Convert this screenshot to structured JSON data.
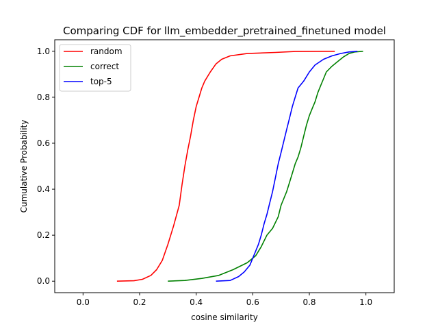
{
  "chart_data": {
    "type": "line",
    "title": "Comparing CDF for llm_embedder_pretrained_finetuned model",
    "xlabel": "cosine similarity",
    "ylabel": "Cumulative Probability",
    "xlim": [
      -0.1,
      1.1
    ],
    "ylim": [
      -0.05,
      1.05
    ],
    "xticks": [
      0.0,
      0.2,
      0.4,
      0.6,
      0.8,
      1.0
    ],
    "xtick_labels": [
      "0.0",
      "0.2",
      "0.4",
      "0.6",
      "0.8",
      "1.0"
    ],
    "yticks": [
      0.0,
      0.2,
      0.4,
      0.6,
      0.8,
      1.0
    ],
    "ytick_labels": [
      "0.0",
      "0.2",
      "0.4",
      "0.6",
      "0.8",
      "1.0"
    ],
    "grid": false,
    "legend_position": "top-left",
    "series": [
      {
        "name": "random",
        "color": "#ff0000",
        "points": [
          [
            0.12,
            0.0
          ],
          [
            0.18,
            0.002
          ],
          [
            0.21,
            0.008
          ],
          [
            0.24,
            0.025
          ],
          [
            0.26,
            0.05
          ],
          [
            0.28,
            0.09
          ],
          [
            0.3,
            0.16
          ],
          [
            0.32,
            0.24
          ],
          [
            0.34,
            0.33
          ],
          [
            0.35,
            0.42
          ],
          [
            0.36,
            0.5
          ],
          [
            0.37,
            0.57
          ],
          [
            0.38,
            0.63
          ],
          [
            0.39,
            0.7
          ],
          [
            0.4,
            0.76
          ],
          [
            0.41,
            0.8
          ],
          [
            0.42,
            0.84
          ],
          [
            0.43,
            0.87
          ],
          [
            0.45,
            0.91
          ],
          [
            0.47,
            0.945
          ],
          [
            0.49,
            0.965
          ],
          [
            0.52,
            0.98
          ],
          [
            0.58,
            0.99
          ],
          [
            0.68,
            0.995
          ],
          [
            0.75,
            0.999
          ],
          [
            0.89,
            1.0
          ]
        ]
      },
      {
        "name": "correct",
        "color": "#008000",
        "points": [
          [
            0.3,
            0.0
          ],
          [
            0.36,
            0.003
          ],
          [
            0.42,
            0.012
          ],
          [
            0.48,
            0.025
          ],
          [
            0.53,
            0.05
          ],
          [
            0.58,
            0.08
          ],
          [
            0.61,
            0.11
          ],
          [
            0.63,
            0.15
          ],
          [
            0.65,
            0.2
          ],
          [
            0.67,
            0.23
          ],
          [
            0.69,
            0.28
          ],
          [
            0.7,
            0.33
          ],
          [
            0.72,
            0.39
          ],
          [
            0.73,
            0.43
          ],
          [
            0.74,
            0.47
          ],
          [
            0.75,
            0.51
          ],
          [
            0.76,
            0.54
          ],
          [
            0.77,
            0.58
          ],
          [
            0.78,
            0.63
          ],
          [
            0.79,
            0.68
          ],
          [
            0.8,
            0.72
          ],
          [
            0.81,
            0.75
          ],
          [
            0.82,
            0.78
          ],
          [
            0.83,
            0.82
          ],
          [
            0.84,
            0.85
          ],
          [
            0.85,
            0.88
          ],
          [
            0.86,
            0.91
          ],
          [
            0.88,
            0.935
          ],
          [
            0.9,
            0.955
          ],
          [
            0.92,
            0.975
          ],
          [
            0.94,
            0.99
          ],
          [
            0.96,
            0.997
          ],
          [
            0.99,
            1.0
          ]
        ]
      },
      {
        "name": "top-5",
        "color": "#0000ff",
        "points": [
          [
            0.47,
            0.0
          ],
          [
            0.52,
            0.003
          ],
          [
            0.55,
            0.02
          ],
          [
            0.57,
            0.04
          ],
          [
            0.59,
            0.07
          ],
          [
            0.6,
            0.1
          ],
          [
            0.61,
            0.13
          ],
          [
            0.62,
            0.16
          ],
          [
            0.63,
            0.2
          ],
          [
            0.64,
            0.25
          ],
          [
            0.65,
            0.29
          ],
          [
            0.66,
            0.34
          ],
          [
            0.67,
            0.39
          ],
          [
            0.68,
            0.45
          ],
          [
            0.69,
            0.51
          ],
          [
            0.7,
            0.56
          ],
          [
            0.71,
            0.61
          ],
          [
            0.72,
            0.66
          ],
          [
            0.73,
            0.71
          ],
          [
            0.74,
            0.76
          ],
          [
            0.75,
            0.8
          ],
          [
            0.76,
            0.84
          ],
          [
            0.78,
            0.87
          ],
          [
            0.8,
            0.91
          ],
          [
            0.82,
            0.94
          ],
          [
            0.85,
            0.965
          ],
          [
            0.88,
            0.98
          ],
          [
            0.91,
            0.99
          ],
          [
            0.94,
            0.997
          ],
          [
            0.97,
            1.0
          ]
        ]
      }
    ]
  }
}
